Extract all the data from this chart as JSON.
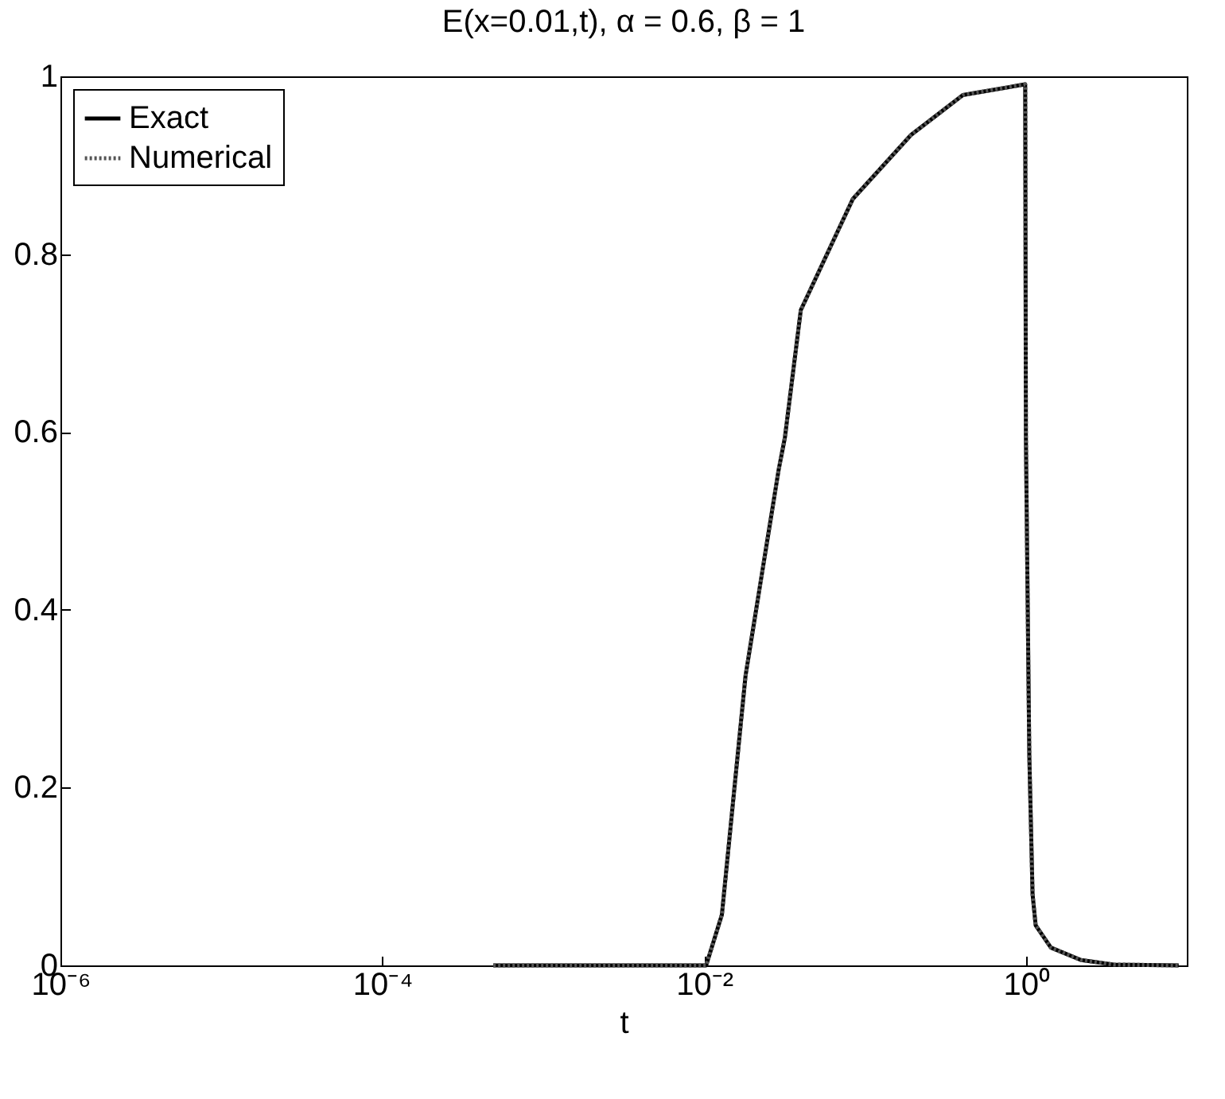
{
  "chart_data": {
    "type": "line",
    "title": "E(x=0.01,t),  α = 0.6,  β = 1",
    "xlabel": "t",
    "log": "x",
    "xlim": [
      1e-06,
      10
    ],
    "xticks": [
      {
        "value": 1e-06,
        "label": "10⁻⁶"
      },
      {
        "value": 0.0001,
        "label": "10⁻⁴"
      },
      {
        "value": 0.01,
        "label": "10⁻²"
      },
      {
        "value": 1,
        "label": "10⁰"
      }
    ],
    "ylim": [
      0,
      1
    ],
    "yticks": [
      0,
      0.2,
      0.4,
      0.6,
      0.8,
      1
    ],
    "grid": false,
    "legend": "top left",
    "marker": "none",
    "x": [
      0.00049,
      0.0103,
      0.0129,
      0.0181,
      0.0291,
      0.0318,
      0.0399,
      0.084,
      0.193,
      0.406,
      0.99,
      1.0,
      1.05,
      1.1,
      1.15,
      1.43,
      2.2,
      3.5,
      8.9
    ],
    "series": [
      {
        "name": "Exact",
        "color": "#000000",
        "line_style": "solid",
        "values": [
          0,
          0,
          0.057,
          0.326,
          0.558,
          0.594,
          0.737,
          0.862,
          0.934,
          0.979,
          0.991,
          0.594,
          0.236,
          0.08,
          0.045,
          0.02,
          0.006,
          0.001,
          0
        ]
      },
      {
        "name": "Numerical",
        "color": "#555555",
        "line_style": "dotted",
        "values": [
          0,
          0,
          0.057,
          0.326,
          0.558,
          0.594,
          0.737,
          0.862,
          0.934,
          0.979,
          0.991,
          0.594,
          0.236,
          0.08,
          0.045,
          0.02,
          0.006,
          0.001,
          0
        ]
      }
    ]
  }
}
